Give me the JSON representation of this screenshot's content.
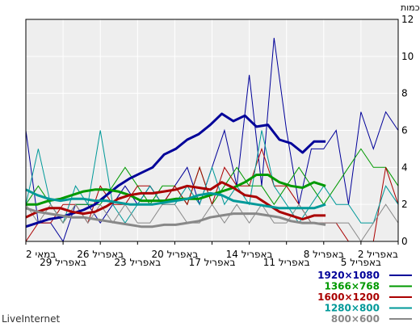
{
  "chart_data": {
    "type": "line",
    "ylabel": "כמות",
    "ylim": [
      0,
      12
    ],
    "yticks": [
      0,
      2,
      4,
      6,
      8,
      10,
      12
    ],
    "grid": true,
    "xtick_labels": [
      "2 במאי",
      "29 באפריל",
      "26 באפריל",
      "23 באפריל",
      "20 באפריל",
      "17 באפריל",
      "14 באפריל",
      "11 באפריל",
      "8 באפריל",
      "5 באפריל",
      "2 באפריל"
    ],
    "series": [
      {
        "name": "1920×1080",
        "color": "#000099",
        "raw": [
          6,
          1,
          1,
          0,
          2,
          2,
          1,
          2,
          3,
          2,
          3,
          2,
          3,
          4,
          2,
          4,
          6,
          3,
          9,
          3,
          11,
          6,
          2,
          5,
          5,
          6,
          2,
          7,
          5,
          7,
          6
        ],
        "smooth": [
          0.8,
          1,
          1.2,
          1.3,
          1.5,
          1.7,
          2,
          2.5,
          3,
          3.4,
          3.7,
          4,
          4.7,
          5,
          5.5,
          5.8,
          6.3,
          6.9,
          6.5,
          6.8,
          6.2,
          6.3,
          5.5,
          5.3,
          4.8,
          5.4,
          5.4
        ]
      },
      {
        "name": "1366×768",
        "color": "#009900",
        "raw": [
          2,
          3,
          2,
          1,
          2,
          2,
          2,
          3,
          4,
          3,
          2,
          3,
          3,
          2,
          4,
          2,
          3,
          4,
          3,
          3,
          2,
          3,
          4,
          3,
          2,
          3,
          4,
          5,
          4,
          4,
          3
        ],
        "smooth": [
          2,
          2,
          2.2,
          2.3,
          2.5,
          2.7,
          2.8,
          2.8,
          2.7,
          2.5,
          2.2,
          2.2,
          2.2,
          2.3,
          2.3,
          2.3,
          2.5,
          2.7,
          2.9,
          3.2,
          3.6,
          3.6,
          3.2,
          3,
          2.9,
          3.2,
          3
        ]
      },
      {
        "name": "1600×1200",
        "color": "#aa0000",
        "raw": [
          0,
          1,
          1,
          2,
          2,
          1,
          3,
          2,
          2,
          3,
          3,
          2,
          3,
          2,
          4,
          2,
          4,
          3,
          3,
          5,
          3,
          3,
          2,
          1,
          1,
          1,
          0,
          0,
          0,
          4,
          2
        ],
        "smooth": [
          1.3,
          1.6,
          1.8,
          1.8,
          1.6,
          1.5,
          1.6,
          1.9,
          2.3,
          2.5,
          2.6,
          2.6,
          2.7,
          2.8,
          3,
          2.9,
          2.8,
          3.2,
          2.9,
          2.5,
          2.4,
          2,
          1.6,
          1.4,
          1.2,
          1.4,
          1.4
        ]
      },
      {
        "name": "1280×800",
        "color": "#009999",
        "raw": [
          2,
          5,
          2,
          1,
          3,
          2,
          6,
          2,
          1,
          2,
          3,
          2,
          2,
          3,
          2,
          4,
          2,
          3,
          2,
          6,
          3,
          2,
          1,
          2,
          3,
          2,
          2,
          1,
          1,
          3,
          2
        ],
        "smooth": [
          2.8,
          2.5,
          2.3,
          2.2,
          2.3,
          2.3,
          2.2,
          2.2,
          2.1,
          2,
          2,
          2,
          2.1,
          2.2,
          2.3,
          2.5,
          2.6,
          2.5,
          2.2,
          2.1,
          2,
          1.9,
          1.8,
          1.8,
          1.8,
          1.8,
          2
        ]
      },
      {
        "name": "800×600",
        "color": "#888888",
        "raw": [
          2,
          1,
          2,
          1,
          2,
          1,
          2,
          1,
          2,
          1,
          1,
          2,
          2,
          1,
          1,
          2,
          1,
          2,
          1,
          2,
          1,
          1,
          2,
          1,
          1,
          1,
          1,
          0,
          1,
          2,
          1
        ],
        "smooth": [
          1.8,
          1.6,
          1.5,
          1.4,
          1.3,
          1.3,
          1.2,
          1.1,
          1,
          0.9,
          0.8,
          0.8,
          0.9,
          0.9,
          1,
          1.1,
          1.3,
          1.4,
          1.5,
          1.5,
          1.5,
          1.4,
          1.3,
          1.1,
          1,
          1,
          0.9
        ]
      }
    ]
  },
  "brand": "LiveInternet"
}
